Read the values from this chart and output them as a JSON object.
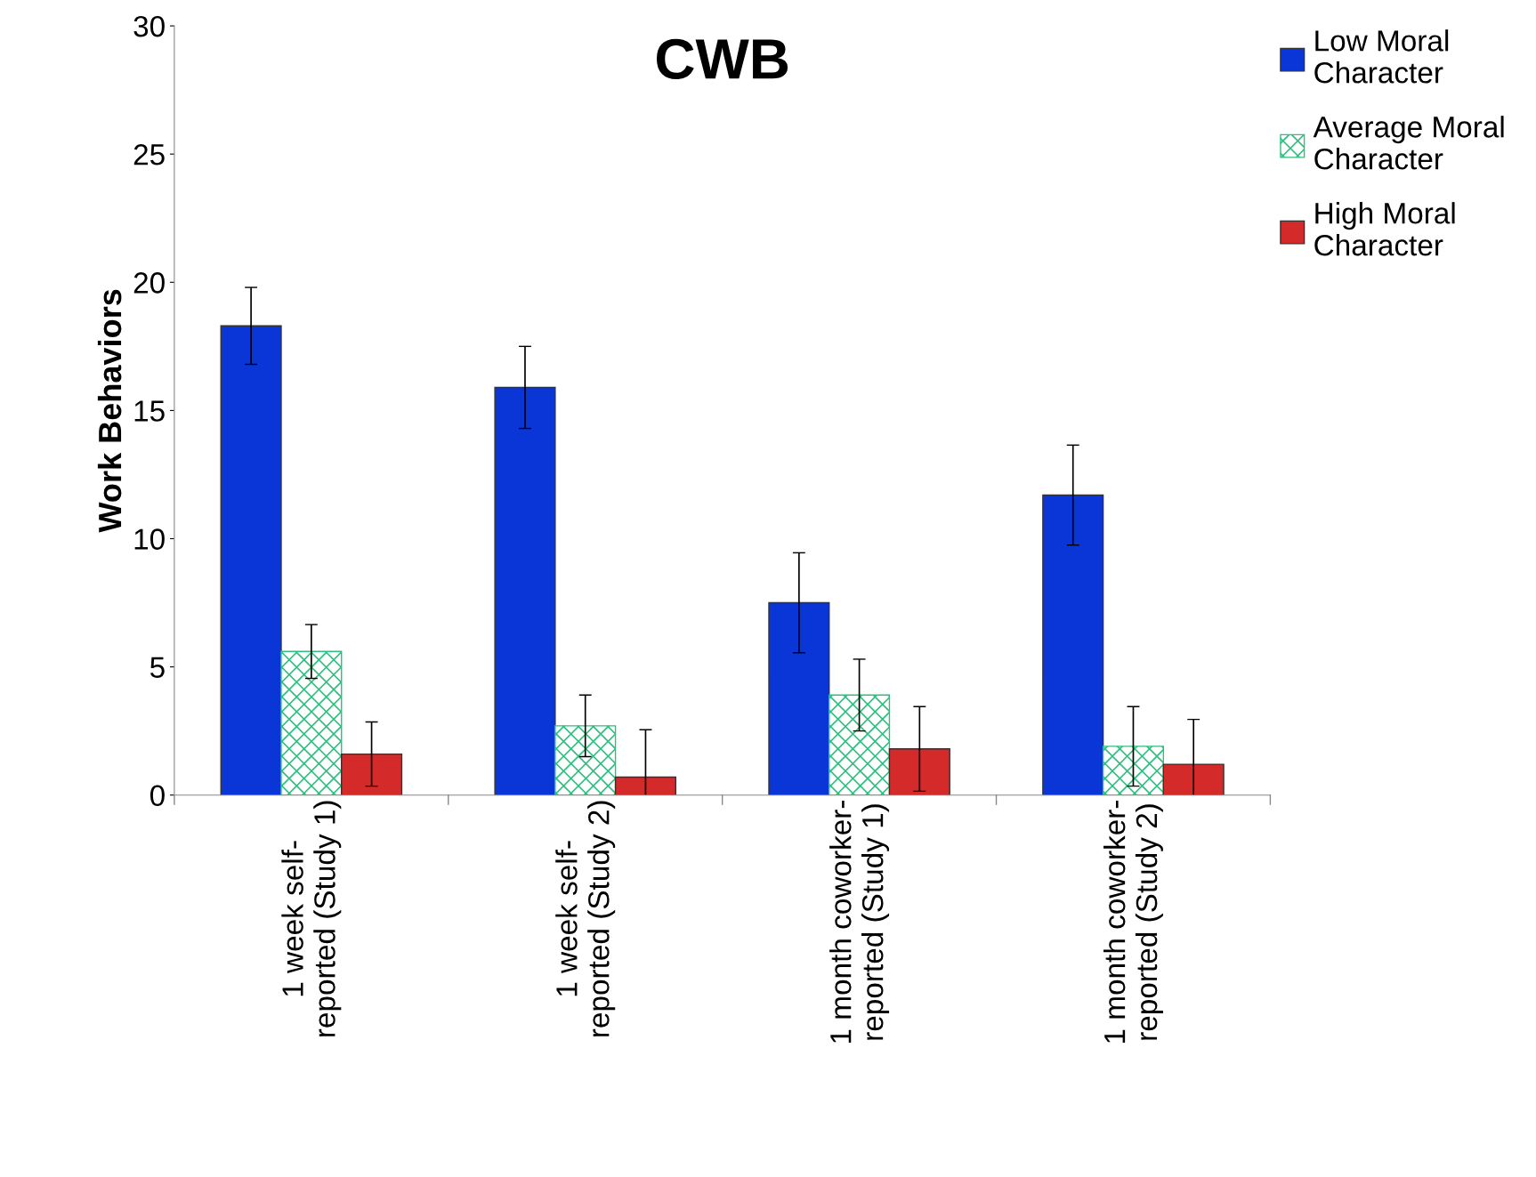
{
  "chart_data": {
    "type": "bar",
    "title": "CWB",
    "ylabel": "Work Behaviors",
    "categories": [
      "1 week self-\nreported (Study 1)",
      "1 week self-\nreported (Study 2)",
      "1 month coworker-\nreported (Study 1)",
      "1 month coworker-\nreported (Study 2)"
    ],
    "series": [
      {
        "name": "Low Moral\nCharacter",
        "color": "#0a36d8",
        "values": [
          18.3,
          15.9,
          7.5,
          11.7
        ],
        "errors": [
          1.5,
          1.6,
          1.95,
          1.95
        ]
      },
      {
        "name": "Average Moral\nCharacter",
        "color": "#2fbf7f",
        "values": [
          5.6,
          2.7,
          3.9,
          1.9
        ],
        "errors": [
          1.05,
          1.2,
          1.4,
          1.55
        ]
      },
      {
        "name": "High Moral\nCharacter",
        "color": "#d42a2a",
        "values": [
          1.6,
          0.7,
          1.8,
          1.2
        ],
        "errors": [
          1.25,
          1.85,
          1.65,
          1.75
        ]
      }
    ],
    "ylim": [
      0,
      30
    ],
    "yticks": [
      0,
      5,
      10,
      15,
      20,
      25,
      30
    ],
    "grid": false,
    "legend": "top right"
  }
}
